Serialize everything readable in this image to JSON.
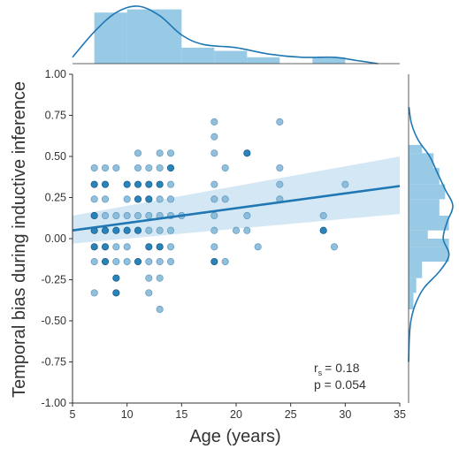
{
  "chart_data": {
    "type": "scatter",
    "xlabel": "Age (years)",
    "ylabel": "Temporal bias during inductive inference",
    "xlim": [
      5,
      35
    ],
    "ylim": [
      -1.0,
      1.0
    ],
    "x_ticks": [
      "5",
      "10",
      "15",
      "20",
      "25",
      "30",
      "35"
    ],
    "y_ticks": [
      "1.00",
      "0.75",
      "0.50",
      "0.25",
      "0.00",
      "-0.25",
      "-0.50",
      "-0.75",
      "-1.00"
    ],
    "grid": false,
    "colors": {
      "light": "#7fb5d6",
      "dark": "#1f7db8",
      "line": "#1f77b4",
      "band": "#c6dff0",
      "hist": "#86bfe0"
    },
    "stats": {
      "r_label": "r",
      "r_subscript": "s",
      "r_value": "= 0.18",
      "p_label": "p = 0.054"
    },
    "regression": {
      "x": [
        5,
        35
      ],
      "y": [
        0.05,
        0.32
      ],
      "ci_lower": [
        -0.03,
        0.15
      ],
      "ci_upper": [
        0.14,
        0.5
      ]
    },
    "points": [
      {
        "x": 7,
        "y": 0.43,
        "s": "light"
      },
      {
        "x": 7,
        "y": 0.33,
        "s": "dark"
      },
      {
        "x": 7,
        "y": 0.24,
        "s": "light"
      },
      {
        "x": 7,
        "y": 0.14,
        "s": "dark"
      },
      {
        "x": 7,
        "y": 0.05,
        "s": "dark"
      },
      {
        "x": 7,
        "y": -0.05,
        "s": "dark"
      },
      {
        "x": 7,
        "y": -0.14,
        "s": "light"
      },
      {
        "x": 7,
        "y": -0.33,
        "s": "light"
      },
      {
        "x": 8,
        "y": 0.43,
        "s": "light"
      },
      {
        "x": 8,
        "y": 0.33,
        "s": "dark"
      },
      {
        "x": 8,
        "y": 0.24,
        "s": "light"
      },
      {
        "x": 8,
        "y": 0.14,
        "s": "light"
      },
      {
        "x": 8,
        "y": 0.05,
        "s": "dark"
      },
      {
        "x": 8,
        "y": -0.05,
        "s": "dark"
      },
      {
        "x": 8,
        "y": -0.14,
        "s": "dark"
      },
      {
        "x": 9,
        "y": 0.43,
        "s": "light"
      },
      {
        "x": 9,
        "y": 0.14,
        "s": "light"
      },
      {
        "x": 9,
        "y": 0.05,
        "s": "dark"
      },
      {
        "x": 9,
        "y": -0.05,
        "s": "light"
      },
      {
        "x": 9,
        "y": -0.14,
        "s": "light"
      },
      {
        "x": 9,
        "y": -0.24,
        "s": "dark"
      },
      {
        "x": 9,
        "y": -0.33,
        "s": "dark"
      },
      {
        "x": 10,
        "y": 0.33,
        "s": "dark"
      },
      {
        "x": 10,
        "y": 0.24,
        "s": "light"
      },
      {
        "x": 10,
        "y": 0.14,
        "s": "light"
      },
      {
        "x": 10,
        "y": 0.05,
        "s": "dark"
      },
      {
        "x": 10,
        "y": -0.05,
        "s": "light"
      },
      {
        "x": 10,
        "y": -0.14,
        "s": "light"
      },
      {
        "x": 11,
        "y": 0.52,
        "s": "light"
      },
      {
        "x": 11,
        "y": 0.43,
        "s": "light"
      },
      {
        "x": 11,
        "y": 0.33,
        "s": "dark"
      },
      {
        "x": 11,
        "y": 0.24,
        "s": "dark"
      },
      {
        "x": 11,
        "y": 0.14,
        "s": "light"
      },
      {
        "x": 11,
        "y": 0.05,
        "s": "dark"
      },
      {
        "x": 11,
        "y": -0.14,
        "s": "dark"
      },
      {
        "x": 12,
        "y": 0.43,
        "s": "light"
      },
      {
        "x": 12,
        "y": 0.33,
        "s": "dark"
      },
      {
        "x": 12,
        "y": 0.24,
        "s": "dark"
      },
      {
        "x": 12,
        "y": 0.14,
        "s": "light"
      },
      {
        "x": 12,
        "y": 0.05,
        "s": "light"
      },
      {
        "x": 12,
        "y": -0.05,
        "s": "dark"
      },
      {
        "x": 12,
        "y": -0.14,
        "s": "light"
      },
      {
        "x": 12,
        "y": -0.24,
        "s": "light"
      },
      {
        "x": 12,
        "y": -0.33,
        "s": "light"
      },
      {
        "x": 13,
        "y": 0.52,
        "s": "light"
      },
      {
        "x": 13,
        "y": 0.43,
        "s": "light"
      },
      {
        "x": 13,
        "y": 0.33,
        "s": "dark"
      },
      {
        "x": 13,
        "y": 0.24,
        "s": "light"
      },
      {
        "x": 13,
        "y": 0.14,
        "s": "light"
      },
      {
        "x": 13,
        "y": 0.05,
        "s": "light"
      },
      {
        "x": 13,
        "y": -0.05,
        "s": "dark"
      },
      {
        "x": 13,
        "y": -0.14,
        "s": "light"
      },
      {
        "x": 13,
        "y": -0.24,
        "s": "light"
      },
      {
        "x": 13,
        "y": -0.43,
        "s": "light"
      },
      {
        "x": 14,
        "y": 0.52,
        "s": "light"
      },
      {
        "x": 14,
        "y": 0.43,
        "s": "dark"
      },
      {
        "x": 14,
        "y": 0.33,
        "s": "light"
      },
      {
        "x": 14,
        "y": 0.24,
        "s": "light"
      },
      {
        "x": 14,
        "y": 0.14,
        "s": "light"
      },
      {
        "x": 14,
        "y": 0.05,
        "s": "light"
      },
      {
        "x": 14,
        "y": -0.05,
        "s": "light"
      },
      {
        "x": 14,
        "y": -0.14,
        "s": "light"
      },
      {
        "x": 15,
        "y": 0.14,
        "s": "light"
      },
      {
        "x": 18,
        "y": 0.71,
        "s": "light"
      },
      {
        "x": 18,
        "y": 0.62,
        "s": "light"
      },
      {
        "x": 18,
        "y": 0.52,
        "s": "light"
      },
      {
        "x": 18,
        "y": 0.33,
        "s": "light"
      },
      {
        "x": 18,
        "y": 0.24,
        "s": "light"
      },
      {
        "x": 18,
        "y": 0.14,
        "s": "light"
      },
      {
        "x": 18,
        "y": 0.05,
        "s": "light"
      },
      {
        "x": 18,
        "y": -0.05,
        "s": "light"
      },
      {
        "x": 18,
        "y": -0.14,
        "s": "dark"
      },
      {
        "x": 19,
        "y": 0.43,
        "s": "light"
      },
      {
        "x": 19,
        "y": 0.24,
        "s": "light"
      },
      {
        "x": 19,
        "y": -0.14,
        "s": "light"
      },
      {
        "x": 20,
        "y": 0.05,
        "s": "light"
      },
      {
        "x": 21,
        "y": 0.52,
        "s": "dark"
      },
      {
        "x": 21,
        "y": 0.14,
        "s": "light"
      },
      {
        "x": 21,
        "y": 0.05,
        "s": "light"
      },
      {
        "x": 22,
        "y": -0.05,
        "s": "light"
      },
      {
        "x": 24,
        "y": 0.71,
        "s": "light"
      },
      {
        "x": 24,
        "y": 0.43,
        "s": "light"
      },
      {
        "x": 24,
        "y": 0.33,
        "s": "light"
      },
      {
        "x": 24,
        "y": 0.24,
        "s": "light"
      },
      {
        "x": 28,
        "y": 0.14,
        "s": "light"
      },
      {
        "x": 28,
        "y": 0.05,
        "s": "dark"
      },
      {
        "x": 29,
        "y": -0.05,
        "s": "light"
      },
      {
        "x": 30,
        "y": 0.33,
        "s": "light"
      }
    ],
    "x_marginal": {
      "bins": [
        {
          "from": 7,
          "to": 10,
          "density": 0.16
        },
        {
          "from": 10,
          "to": 15,
          "density": 0.17
        },
        {
          "from": 15,
          "to": 18,
          "density": 0.05
        },
        {
          "from": 18,
          "to": 21,
          "density": 0.04
        },
        {
          "from": 21,
          "to": 24,
          "density": 0.02
        },
        {
          "from": 24,
          "to": 27,
          "density": 0.0
        },
        {
          "from": 27,
          "to": 30,
          "density": 0.02
        }
      ],
      "kde": [
        [
          5,
          0.02
        ],
        [
          7,
          0.1
        ],
        [
          9,
          0.16
        ],
        [
          11,
          0.18
        ],
        [
          13,
          0.15
        ],
        [
          15,
          0.09
        ],
        [
          17,
          0.06
        ],
        [
          20,
          0.05
        ],
        [
          23,
          0.03
        ],
        [
          26,
          0.02
        ],
        [
          29,
          0.02
        ],
        [
          31,
          0.01
        ],
        [
          33,
          0.0
        ]
      ]
    },
    "y_marginal": {
      "bins": [
        {
          "from": 0.52,
          "to": 0.57,
          "density": 0.7
        },
        {
          "from": 0.43,
          "to": 0.52,
          "density": 1.3
        },
        {
          "from": 0.33,
          "to": 0.43,
          "density": 1.6
        },
        {
          "from": 0.24,
          "to": 0.33,
          "density": 1.9
        },
        {
          "from": 0.14,
          "to": 0.24,
          "density": 1.6
        },
        {
          "from": 0.05,
          "to": 0.14,
          "density": 2.1
        },
        {
          "from": 0.0,
          "to": 0.05,
          "density": 1.0
        },
        {
          "from": -0.05,
          "to": 0.0,
          "density": 2.1
        },
        {
          "from": -0.14,
          "to": -0.05,
          "density": 2.1
        },
        {
          "from": -0.24,
          "to": -0.14,
          "density": 0.7
        },
        {
          "from": -0.33,
          "to": -0.24,
          "density": 0.4
        },
        {
          "from": -0.43,
          "to": -0.33,
          "density": 0.25
        }
      ],
      "kde": [
        [
          0.8,
          0.02
        ],
        [
          0.7,
          0.15
        ],
        [
          0.6,
          0.5
        ],
        [
          0.5,
          1.1
        ],
        [
          0.4,
          1.5
        ],
        [
          0.3,
          1.9
        ],
        [
          0.2,
          2.3
        ],
        [
          0.1,
          2.0
        ],
        [
          0.0,
          1.8
        ],
        [
          -0.1,
          2.1
        ],
        [
          -0.2,
          1.6
        ],
        [
          -0.3,
          0.8
        ],
        [
          -0.4,
          0.35
        ],
        [
          -0.5,
          0.12
        ],
        [
          -0.6,
          0.04
        ],
        [
          -0.75,
          0.0
        ]
      ]
    }
  }
}
